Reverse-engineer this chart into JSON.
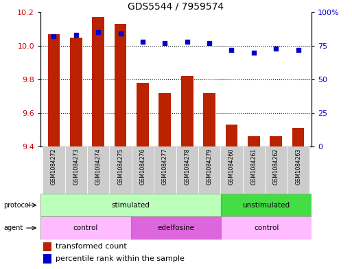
{
  "title": "GDS5544 / 7959574",
  "samples": [
    "GSM1084272",
    "GSM1084273",
    "GSM1084274",
    "GSM1084275",
    "GSM1084276",
    "GSM1084277",
    "GSM1084278",
    "GSM1084279",
    "GSM1084260",
    "GSM1084261",
    "GSM1084262",
    "GSM1084263"
  ],
  "transformed_count": [
    10.07,
    10.05,
    10.17,
    10.13,
    9.78,
    9.72,
    9.82,
    9.72,
    9.53,
    9.46,
    9.46,
    9.51
  ],
  "percentile_rank": [
    82,
    83,
    85,
    84,
    78,
    77,
    78,
    77,
    72,
    70,
    73,
    72
  ],
  "ylim_left": [
    9.4,
    10.2
  ],
  "ylim_right": [
    0,
    100
  ],
  "yticks_left": [
    9.4,
    9.6,
    9.8,
    10.0,
    10.2
  ],
  "yticks_right": [
    0,
    25,
    50,
    75,
    100
  ],
  "bar_color": "#bb2200",
  "dot_color": "#0000cc",
  "grid_color": "#000000",
  "protocol_groups": [
    {
      "label": "stimulated",
      "start": 0,
      "end": 8,
      "color": "#bbffbb"
    },
    {
      "label": "unstimulated",
      "start": 8,
      "end": 12,
      "color": "#44dd44"
    }
  ],
  "agent_groups": [
    {
      "label": "control",
      "start": 0,
      "end": 4,
      "color": "#ffbbff"
    },
    {
      "label": "edelfosine",
      "start": 4,
      "end": 8,
      "color": "#dd66dd"
    },
    {
      "label": "control",
      "start": 8,
      "end": 12,
      "color": "#ffbbff"
    }
  ],
  "protocol_label": "protocol",
  "agent_label": "agent",
  "legend_bar_label": "transformed count",
  "legend_dot_label": "percentile rank within the sample",
  "bg_color": "#ffffff",
  "tick_label_color_left": "#cc0000",
  "tick_label_color_right": "#0000cc",
  "sample_label_bg": "#cccccc",
  "title_fontsize": 10,
  "axis_fontsize": 8,
  "legend_fontsize": 8,
  "bar_width": 0.55
}
